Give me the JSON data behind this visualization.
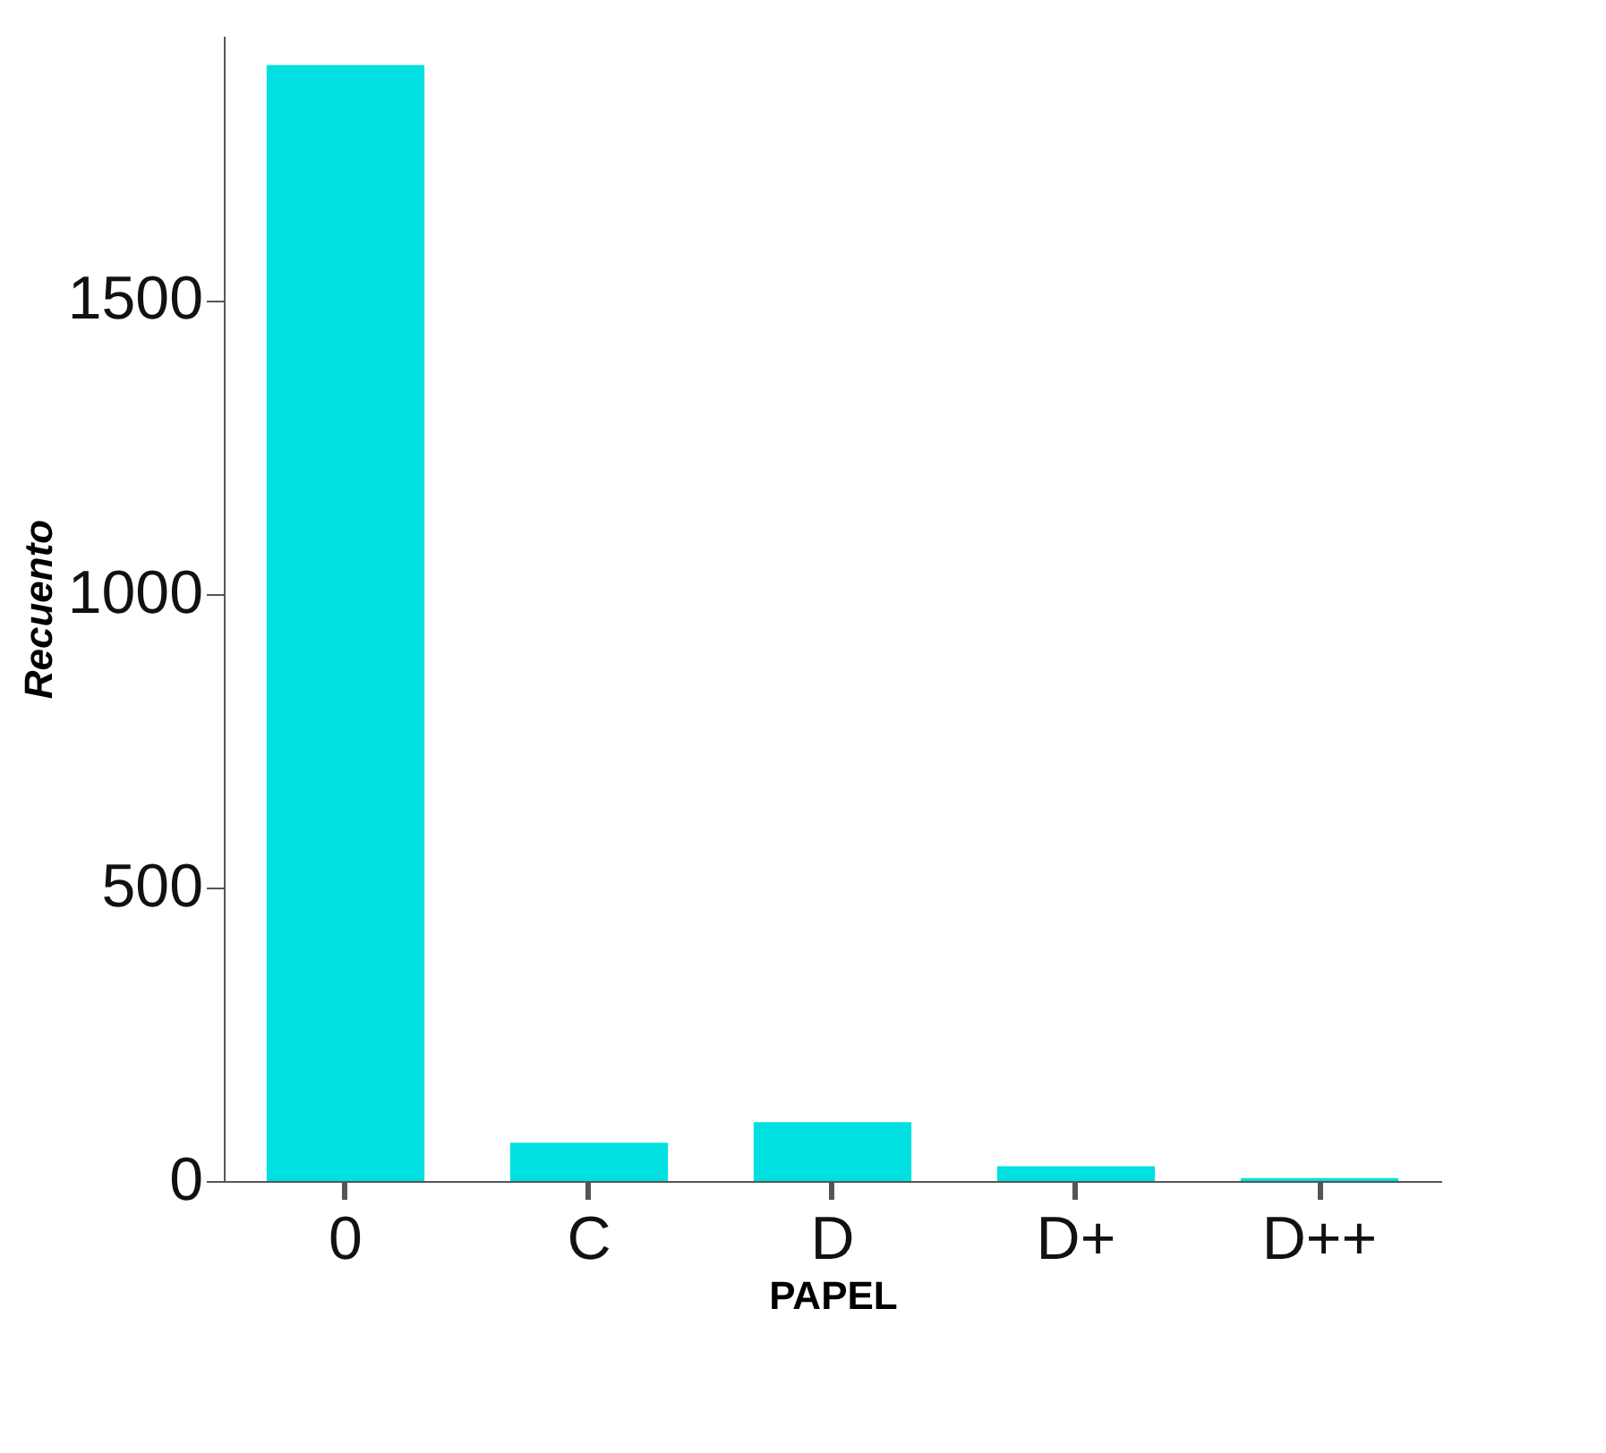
{
  "chart_data": {
    "type": "bar",
    "xlabel": "PAPEL",
    "ylabel": "Recuento",
    "categories": [
      "0",
      "C",
      "D",
      "D+",
      "D++"
    ],
    "values": [
      1900,
      65,
      100,
      25,
      5
    ],
    "color": "#00e0e0",
    "ylim": [
      0,
      1950
    ],
    "yticks": [
      0,
      500,
      1000,
      1500
    ],
    "grid": false
  }
}
